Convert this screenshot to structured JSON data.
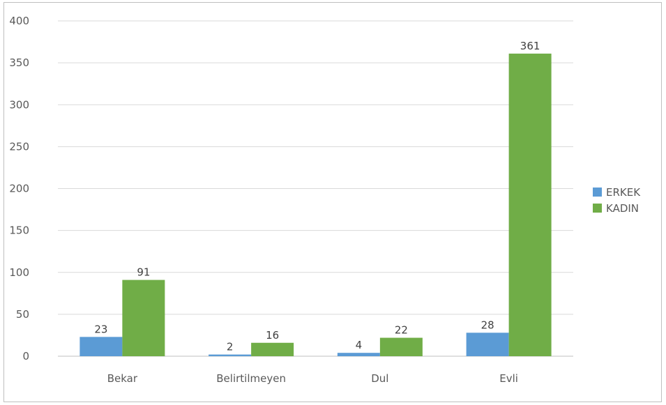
{
  "chart_data": {
    "type": "bar",
    "categories": [
      "Bekar",
      "Belirtilmeyen",
      "Dul",
      "Evli"
    ],
    "series": [
      {
        "name": "ERKEK",
        "values": [
          23,
          2,
          4,
          28
        ],
        "color": "#5b9bd5"
      },
      {
        "name": "KADIN",
        "values": [
          91,
          16,
          22,
          361
        ],
        "color": "#70ad47"
      }
    ],
    "yticks": [
      0,
      50,
      100,
      150,
      200,
      250,
      300,
      350,
      400
    ],
    "ylim": [
      0,
      400
    ],
    "grid": true,
    "legend_position": "right"
  }
}
